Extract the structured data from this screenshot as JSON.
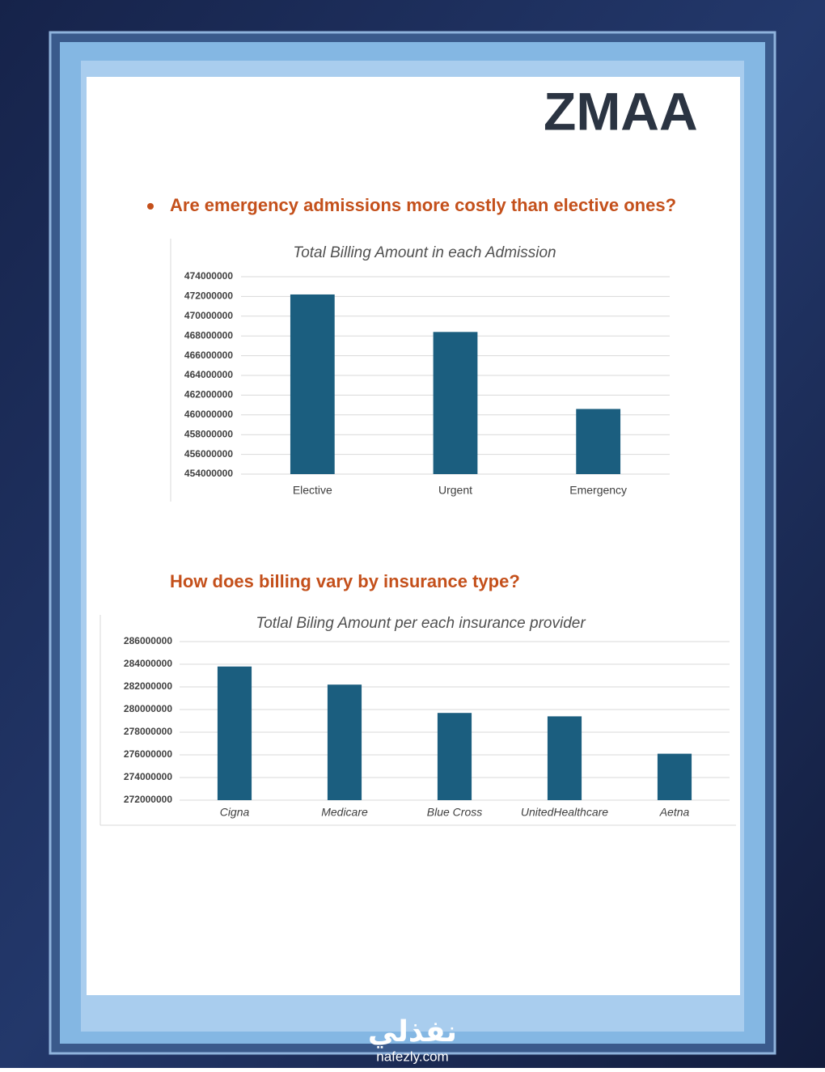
{
  "logo": "ZMAA",
  "questions": [
    "Are emergency admissions more costly than elective ones?",
    "How does billing vary by insurance type?"
  ],
  "watermark": {
    "arabic": "نفذلي",
    "site": "nafezly.com"
  },
  "chart_data": [
    {
      "type": "bar",
      "title": "Total Billing Amount in each Admission",
      "categories": [
        "Elective",
        "Urgent",
        "Emergency"
      ],
      "values": [
        472200000,
        468400000,
        460600000
      ],
      "color": "#1b5e7f",
      "ylim": [
        454000000,
        474000000
      ],
      "yticks": [
        454000000,
        456000000,
        458000000,
        460000000,
        462000000,
        464000000,
        466000000,
        468000000,
        470000000,
        472000000,
        474000000
      ],
      "grid": true
    },
    {
      "type": "bar",
      "title": "Totlal Biling Amount  per each insurance provider",
      "categories": [
        "Cigna",
        "Medicare",
        "Blue Cross",
        "UnitedHealthcare",
        "Aetna"
      ],
      "values": [
        283800000,
        282200000,
        279700000,
        279400000,
        276100000
      ],
      "color": "#1b5e7f",
      "ylim": [
        272000000,
        286000000
      ],
      "yticks": [
        272000000,
        274000000,
        276000000,
        278000000,
        280000000,
        282000000,
        284000000,
        286000000
      ],
      "grid": true
    }
  ]
}
